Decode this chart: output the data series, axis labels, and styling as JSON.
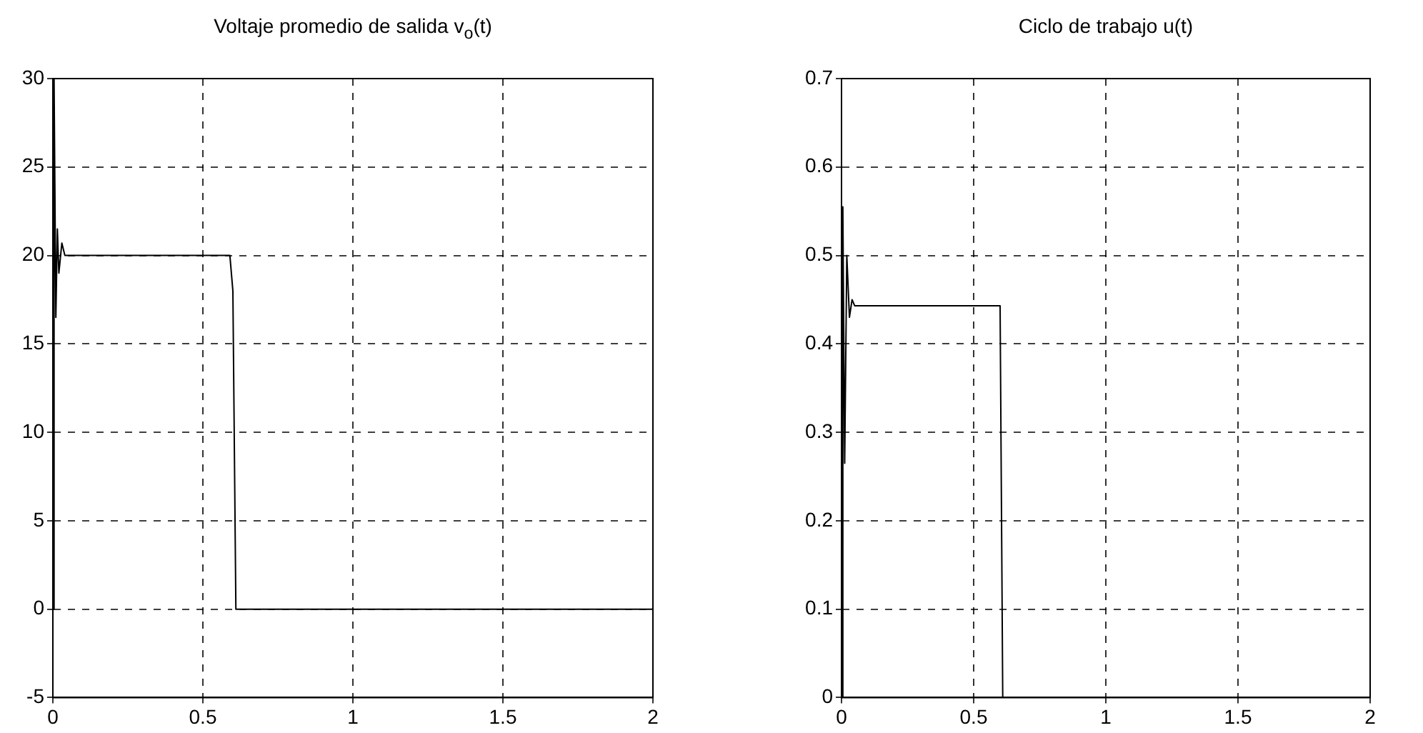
{
  "chart_data": [
    {
      "type": "line",
      "title": "Voltaje promedio de salida v$_{o}$(t)",
      "x": [
        0,
        0.004,
        0.01,
        0.015,
        0.02,
        0.03,
        0.04,
        0.59,
        0.6,
        0.61,
        2
      ],
      "series": [
        {
          "color": "#000000",
          "values": [
            0,
            30,
            16.5,
            21.5,
            19,
            20.7,
            20,
            20,
            18,
            0,
            0
          ]
        }
      ],
      "xlim": [
        0,
        2
      ],
      "xticks": [
        0,
        0.5,
        1,
        1.5,
        2
      ],
      "ylim": [
        -5,
        30
      ],
      "yticks": [
        -5,
        0,
        5,
        10,
        15,
        20,
        25,
        30
      ],
      "grid": true,
      "legend": false,
      "marker": "none",
      "line_style": "solid"
    },
    {
      "type": "line",
      "title": "Ciclo de trabajo u(t)",
      "x": [
        0,
        0.005,
        0.012,
        0.02,
        0.03,
        0.04,
        0.05,
        0.6,
        0.61,
        2
      ],
      "series": [
        {
          "color": "#000000",
          "values": [
            0,
            0.555,
            0.265,
            0.5,
            0.43,
            0.45,
            0.443,
            0.443,
            0,
            0
          ]
        }
      ],
      "xlim": [
        0,
        2
      ],
      "xticks": [
        0,
        0.5,
        1,
        1.5,
        2
      ],
      "ylim": [
        0,
        0.7
      ],
      "yticks": [
        0,
        0.1,
        0.2,
        0.3,
        0.4,
        0.5,
        0.6,
        0.7
      ],
      "grid": true,
      "legend": false,
      "marker": "none",
      "line_style": "solid"
    }
  ]
}
